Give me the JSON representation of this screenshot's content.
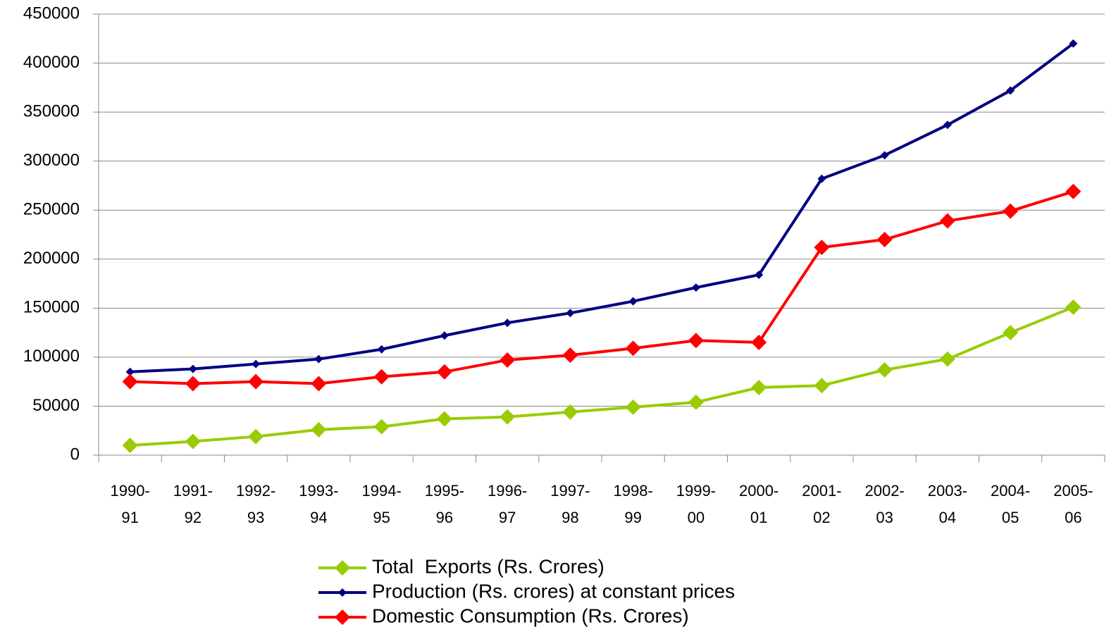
{
  "chart_data": {
    "type": "line",
    "categories": [
      "1990-91",
      "1991-92",
      "1992-93",
      "1993-94",
      "1994-95",
      "1995-96",
      "1996-97",
      "1997-98",
      "1998-99",
      "1999-00",
      "2000-01",
      "2001-02",
      "2002-03",
      "2003-04",
      "2004-05",
      "2005-06"
    ],
    "series": [
      {
        "name": "Total  Exports (Rs. Crores)",
        "color": "#99cc00",
        "values": [
          10000,
          14000,
          19000,
          26000,
          29000,
          37000,
          39000,
          44000,
          49000,
          54000,
          69000,
          71000,
          87000,
          98000,
          125000,
          151000
        ]
      },
      {
        "name": "Production (Rs. crores) at constant prices",
        "color": "#000080",
        "values": [
          85000,
          88000,
          93000,
          98000,
          108000,
          122000,
          135000,
          145000,
          157000,
          171000,
          184000,
          282000,
          306000,
          337000,
          372000,
          420000
        ]
      },
      {
        "name": "Domestic Consumption (Rs. Crores)",
        "color": "#ff0000",
        "values": [
          75000,
          73000,
          75000,
          73000,
          80000,
          85000,
          97000,
          102000,
          109000,
          117000,
          115000,
          212000,
          220000,
          239000,
          249000,
          269000
        ]
      }
    ],
    "ylim": [
      0,
      450000
    ],
    "yticks": [
      0,
      50000,
      100000,
      150000,
      200000,
      250000,
      300000,
      350000,
      400000,
      450000
    ],
    "grid": true,
    "legend": "bottom"
  }
}
